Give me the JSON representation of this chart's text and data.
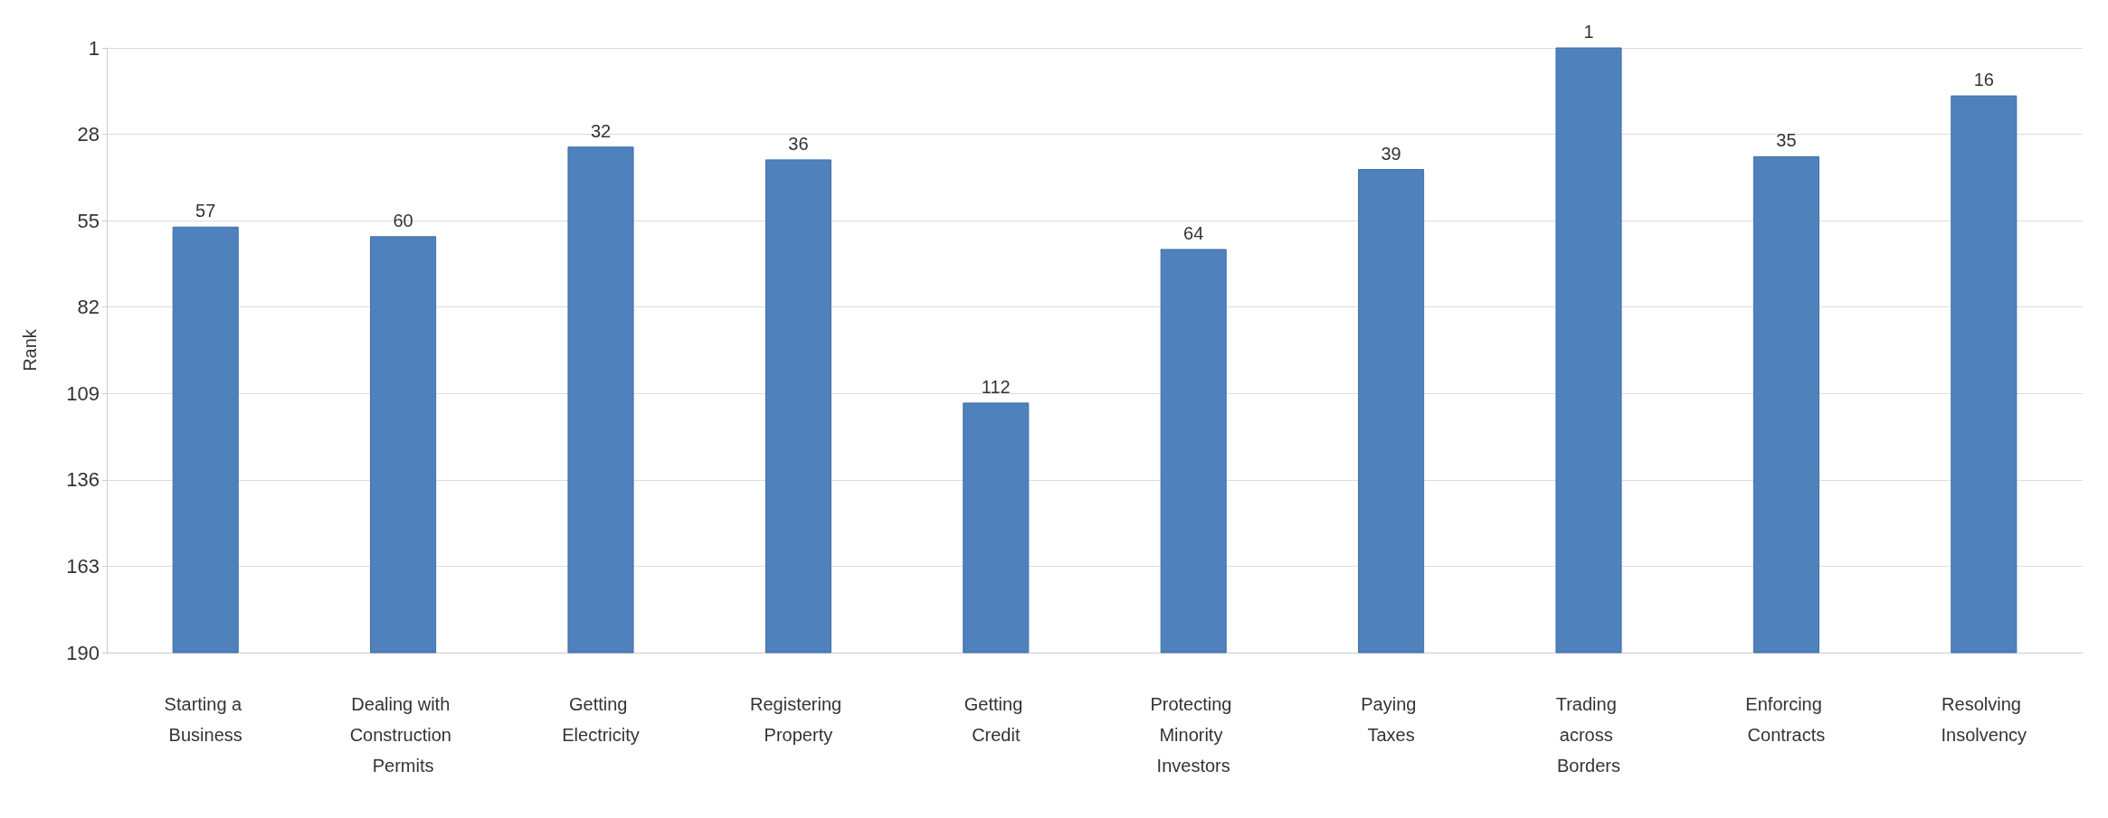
{
  "chart_data": {
    "type": "bar",
    "ylabel": "Rank",
    "categories": [
      "Starting a Business",
      "Dealing with Construction Permits",
      "Getting Electricity",
      "Registering Property",
      "Getting Credit",
      "Protecting Minority Investors",
      "Paying Taxes",
      "Trading across Borders",
      "Enforcing Contracts",
      "Resolving Insolvency"
    ],
    "base": [
      190,
      190,
      190,
      190,
      190,
      190,
      190,
      190,
      190,
      190
    ],
    "values": [
      -133,
      -130,
      -158,
      -154,
      -78,
      -126,
      -151,
      -189,
      -155,
      -174
    ],
    "value_labels": [
      "57",
      "60",
      "32",
      "36",
      "112",
      "64",
      "39",
      "1",
      "35",
      "16"
    ],
    "color": "#4f81bd",
    "ylim": [
      190,
      1
    ],
    "yticks": [
      1,
      28,
      55,
      82,
      109,
      136,
      163,
      190
    ],
    "grid": "y"
  }
}
